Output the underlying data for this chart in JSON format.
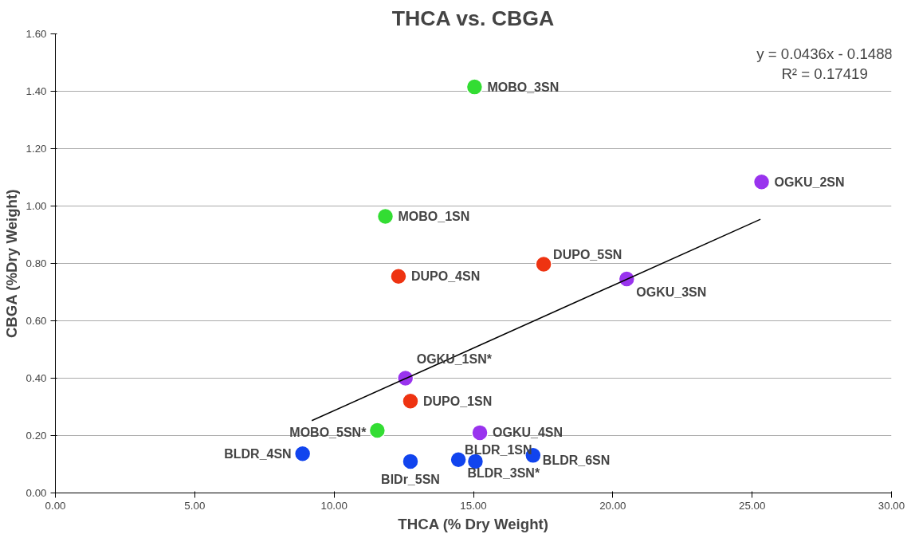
{
  "chart_data": {
    "type": "scatter",
    "title": "THCA vs. CBGA",
    "xlabel": "THCA (% Dry Weight)",
    "ylabel": "CBGA (%Dry Weight)",
    "xlim": [
      0,
      30
    ],
    "ylim": [
      0,
      1.6
    ],
    "xticks": [
      {
        "value": 0,
        "label": "0.00"
      },
      {
        "value": 5,
        "label": "5.00"
      },
      {
        "value": 10,
        "label": "10.00"
      },
      {
        "value": 15,
        "label": "15.00"
      },
      {
        "value": 20,
        "label": "20.00"
      },
      {
        "value": 25,
        "label": "25.00"
      },
      {
        "value": 30,
        "label": "30.00"
      }
    ],
    "yticks": [
      {
        "value": 0,
        "label": "0.00"
      },
      {
        "value": 0.2,
        "label": "0.20"
      },
      {
        "value": 0.4,
        "label": "0.40"
      },
      {
        "value": 0.6,
        "label": "0.60"
      },
      {
        "value": 0.8,
        "label": "0.80"
      },
      {
        "value": 1.0,
        "label": "1.00"
      },
      {
        "value": 1.2,
        "label": "1.20"
      },
      {
        "value": 1.4,
        "label": "1.40"
      },
      {
        "value": 1.6,
        "label": "1.60"
      }
    ],
    "grid": "y",
    "marker": "circle",
    "series": [
      {
        "color": "#33dd33",
        "x": [
          15.04,
          11.84,
          11.55
        ],
        "values": [
          1.415,
          0.964,
          0.218
        ]
      },
      {
        "color": "#ee3311",
        "x": [
          17.52,
          12.31,
          12.74
        ],
        "values": [
          0.797,
          0.755,
          0.32
        ]
      },
      {
        "color": "#9933ee",
        "x": [
          25.34,
          20.5,
          12.56,
          15.23
        ],
        "values": [
          1.084,
          0.746,
          0.4,
          0.21
        ]
      },
      {
        "color": "#1144ee",
        "x": [
          8.87,
          12.74,
          14.46,
          15.07,
          17.14
        ],
        "values": [
          0.137,
          0.11,
          0.116,
          0.11,
          0.131
        ]
      },
      {
        "type": "line",
        "marker": "none",
        "color": "#000000",
        "x": [
          9.2,
          25.3
        ],
        "values": [
          0.252,
          0.954
        ]
      }
    ],
    "annotations": [
      "y = 0.0436x - 0.1488\nR² = 0.17419",
      {
        "text": "MOBO_3SN",
        "x": 15.04,
        "y": 1.415
      },
      {
        "text": "MOBO_1SN",
        "x": 11.84,
        "y": 0.964
      },
      {
        "text": "MOBO_5SN*",
        "x": 11.55,
        "y": 0.218
      },
      {
        "text": "DUPO_5SN",
        "x": 17.52,
        "y": 0.797
      },
      {
        "text": "DUPO_4SN",
        "x": 12.31,
        "y": 0.755
      },
      {
        "text": "DUPO_1SN",
        "x": 12.74,
        "y": 0.32
      },
      {
        "text": "OGKU_2SN",
        "x": 25.34,
        "y": 1.084
      },
      {
        "text": "OGKU_3SN",
        "x": 20.5,
        "y": 0.746
      },
      {
        "text": "OGKU_1SN*",
        "x": 12.56,
        "y": 0.4
      },
      {
        "text": "OGKU_4SN",
        "x": 15.23,
        "y": 0.21
      },
      {
        "text": "BLDR_4SN",
        "x": 8.87,
        "y": 0.137
      },
      {
        "text": "BlDr_5SN",
        "x": 12.74,
        "y": 0.11
      },
      {
        "text": "BLDR_1SN",
        "x": 14.46,
        "y": 0.116
      },
      {
        "text": "BLDR_3SN*",
        "x": 15.07,
        "y": 0.11
      },
      {
        "text": "BLDR_6SN",
        "x": 17.14,
        "y": 0.131
      }
    ]
  }
}
